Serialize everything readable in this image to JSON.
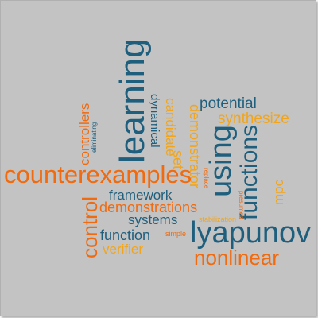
{
  "colors": {
    "background": "#c3c3c3",
    "dark_blue": "#1f5f7e",
    "orange": "#f06a0f",
    "gold": "#f2a51a"
  },
  "words": {
    "counterexamples": "counterexamples",
    "lyapunov": "lyapunov",
    "learning": "learning",
    "using": "using",
    "functions": "functions",
    "nonlinear": "nonlinear",
    "control": "control",
    "potential": "potential",
    "synthesize": "synthesize",
    "controllers": "controllers",
    "dynamical": "dynamical",
    "candidate": "candidate",
    "demonstrator": "demonstrator",
    "set": "set",
    "framework": "framework",
    "demonstrations": "demonstrations",
    "systems": "systems",
    "function": "function",
    "verifier": "verifier",
    "mpc": "mpc",
    "eliminating": "eliminating",
    "replace": "replace",
    "presumed": "presumed",
    "stabilization": "stabilization",
    "simple": "simple"
  }
}
